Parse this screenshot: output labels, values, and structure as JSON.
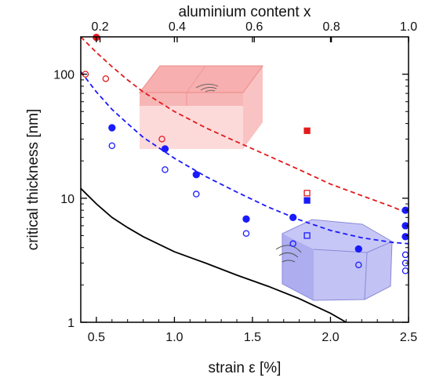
{
  "chart_data": {
    "type": "scatter",
    "title": "",
    "xlabel": "strain ε [%]",
    "ylabel": "critical thickness [nm]",
    "x2label": "aluminium content x",
    "xlim": [
      0.4,
      2.5
    ],
    "ylim": [
      1,
      200
    ],
    "yscale": "log",
    "x2lim": [
      0.15,
      1.0
    ],
    "x_ticks": [
      "0.5",
      "1.0",
      "1.5",
      "2.0",
      "2.5"
    ],
    "x_tick_values": [
      0.5,
      1.0,
      1.5,
      2.0,
      2.5
    ],
    "y_ticks": [
      "1",
      "10",
      "100"
    ],
    "y_tick_values": [
      1,
      10,
      100
    ],
    "x2_ticks": [
      "0.2",
      "0.4",
      "0.6",
      "0.8",
      "1.0"
    ],
    "x2_tick_values": [
      0.2,
      0.4,
      0.6,
      0.8,
      1.0
    ],
    "grid": false,
    "legend": "none",
    "colors": {
      "red": "#e31a1c",
      "blue": "#1a1aff",
      "black": "#000000"
    },
    "series": [
      {
        "color": "red",
        "marker": "filled-circle",
        "points": [
          [
            0.5,
            198
          ]
        ]
      },
      {
        "color": "red",
        "marker": "open-circle",
        "points": [
          [
            0.43,
            100
          ],
          [
            0.56,
            92
          ],
          [
            0.92,
            30
          ]
        ]
      },
      {
        "color": "red",
        "marker": "filled-square",
        "points": [
          [
            1.85,
            35
          ]
        ]
      },
      {
        "color": "red",
        "marker": "open-square",
        "points": [
          [
            1.85,
            11
          ]
        ]
      },
      {
        "color": "blue",
        "marker": "filled-circle",
        "points": [
          [
            0.6,
            37
          ],
          [
            0.94,
            25
          ],
          [
            1.14,
            15.5
          ],
          [
            1.46,
            6.8
          ],
          [
            1.76,
            7.0
          ],
          [
            2.18,
            3.9
          ],
          [
            2.48,
            8.0
          ],
          [
            2.48,
            6.0
          ],
          [
            2.48,
            4.9
          ]
        ]
      },
      {
        "color": "blue",
        "marker": "open-circle",
        "points": [
          [
            0.6,
            26.5
          ],
          [
            0.94,
            17
          ],
          [
            1.14,
            10.8
          ],
          [
            1.46,
            5.2
          ],
          [
            1.76,
            4.3
          ],
          [
            2.18,
            2.9
          ],
          [
            2.48,
            3.5
          ],
          [
            2.48,
            3.0
          ],
          [
            2.48,
            2.6
          ]
        ]
      },
      {
        "color": "blue",
        "marker": "filled-square",
        "points": [
          [
            1.85,
            9.6
          ]
        ]
      },
      {
        "color": "blue",
        "marker": "open-square",
        "points": [
          [
            1.85,
            5.0
          ]
        ]
      }
    ],
    "curves": [
      {
        "color": "red",
        "style": "dashed",
        "points": [
          [
            0.4,
            200
          ],
          [
            0.5,
            150
          ],
          [
            0.6,
            115
          ],
          [
            0.7,
            90
          ],
          [
            0.8,
            72
          ],
          [
            1.0,
            50
          ],
          [
            1.2,
            37
          ],
          [
            1.4,
            28.5
          ],
          [
            1.6,
            22
          ],
          [
            1.8,
            17
          ],
          [
            2.0,
            13
          ],
          [
            2.2,
            10.5
          ],
          [
            2.4,
            8.5
          ],
          [
            2.5,
            7.5
          ]
        ]
      },
      {
        "color": "blue",
        "style": "dashed",
        "points": [
          [
            0.4,
            105
          ],
          [
            0.5,
            72
          ],
          [
            0.6,
            52
          ],
          [
            0.7,
            40
          ],
          [
            0.8,
            31
          ],
          [
            1.0,
            21
          ],
          [
            1.2,
            15
          ],
          [
            1.4,
            11.2
          ],
          [
            1.6,
            8.5
          ],
          [
            1.8,
            6.7
          ],
          [
            2.0,
            5.5
          ],
          [
            2.2,
            4.8
          ],
          [
            2.4,
            4.4
          ],
          [
            2.5,
            4.3
          ]
        ]
      },
      {
        "color": "black",
        "style": "solid",
        "points": [
          [
            0.4,
            12
          ],
          [
            0.5,
            9
          ],
          [
            0.6,
            7.0
          ],
          [
            0.7,
            5.8
          ],
          [
            0.8,
            4.9
          ],
          [
            1.0,
            3.7
          ],
          [
            1.2,
            3.0
          ],
          [
            1.4,
            2.4
          ],
          [
            1.6,
            1.95
          ],
          [
            1.8,
            1.55
          ],
          [
            2.0,
            1.18
          ],
          [
            2.1,
            1.0
          ]
        ]
      }
    ]
  }
}
